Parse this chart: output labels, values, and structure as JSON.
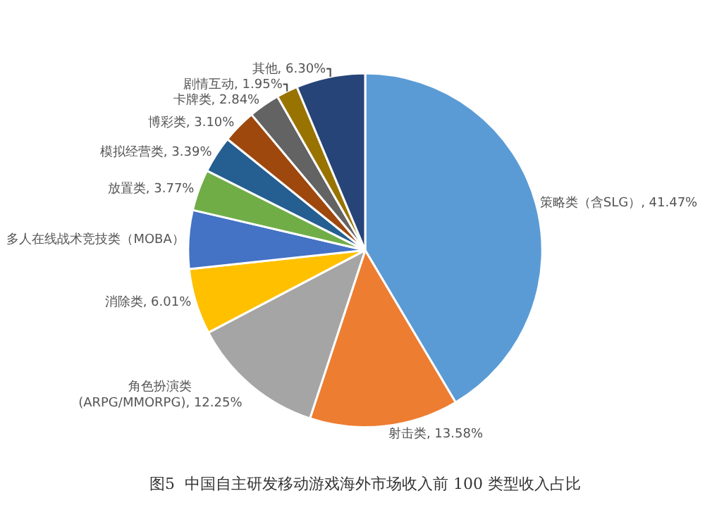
{
  "chart_data": {
    "type": "pie",
    "categories": [
      "策略类（含SLG）",
      "射击类",
      "角色扮演类\n(ARPG/MMORPG)",
      "消除类",
      "多人在线战术竞技类（MOBA）",
      "放置类",
      "模拟经营类",
      "博彩类",
      "卡牌类",
      "剧情互动",
      "其他"
    ],
    "values": [
      41.47,
      13.58,
      12.25,
      6.01,
      5.34,
      3.77,
      3.39,
      3.1,
      2.84,
      1.95,
      6.3
    ],
    "value_labels": [
      "41.47%",
      "13.58%",
      "12.25%",
      "6.01%",
      null,
      "3.77%",
      "3.39%",
      "3.10%",
      "2.84%",
      "1.95%",
      "6.30%"
    ],
    "colors": [
      "#5b9bd5",
      "#ed7d31",
      "#a5a5a5",
      "#ffc000",
      "#4472c4",
      "#70ad47",
      "#255e91",
      "#9e480e",
      "#636363",
      "#997300",
      "#264478"
    ],
    "annotations": [
      "图5  中国自主研发移动游戏海外市场收入前 100 类型收入占比"
    ],
    "legend": false
  }
}
